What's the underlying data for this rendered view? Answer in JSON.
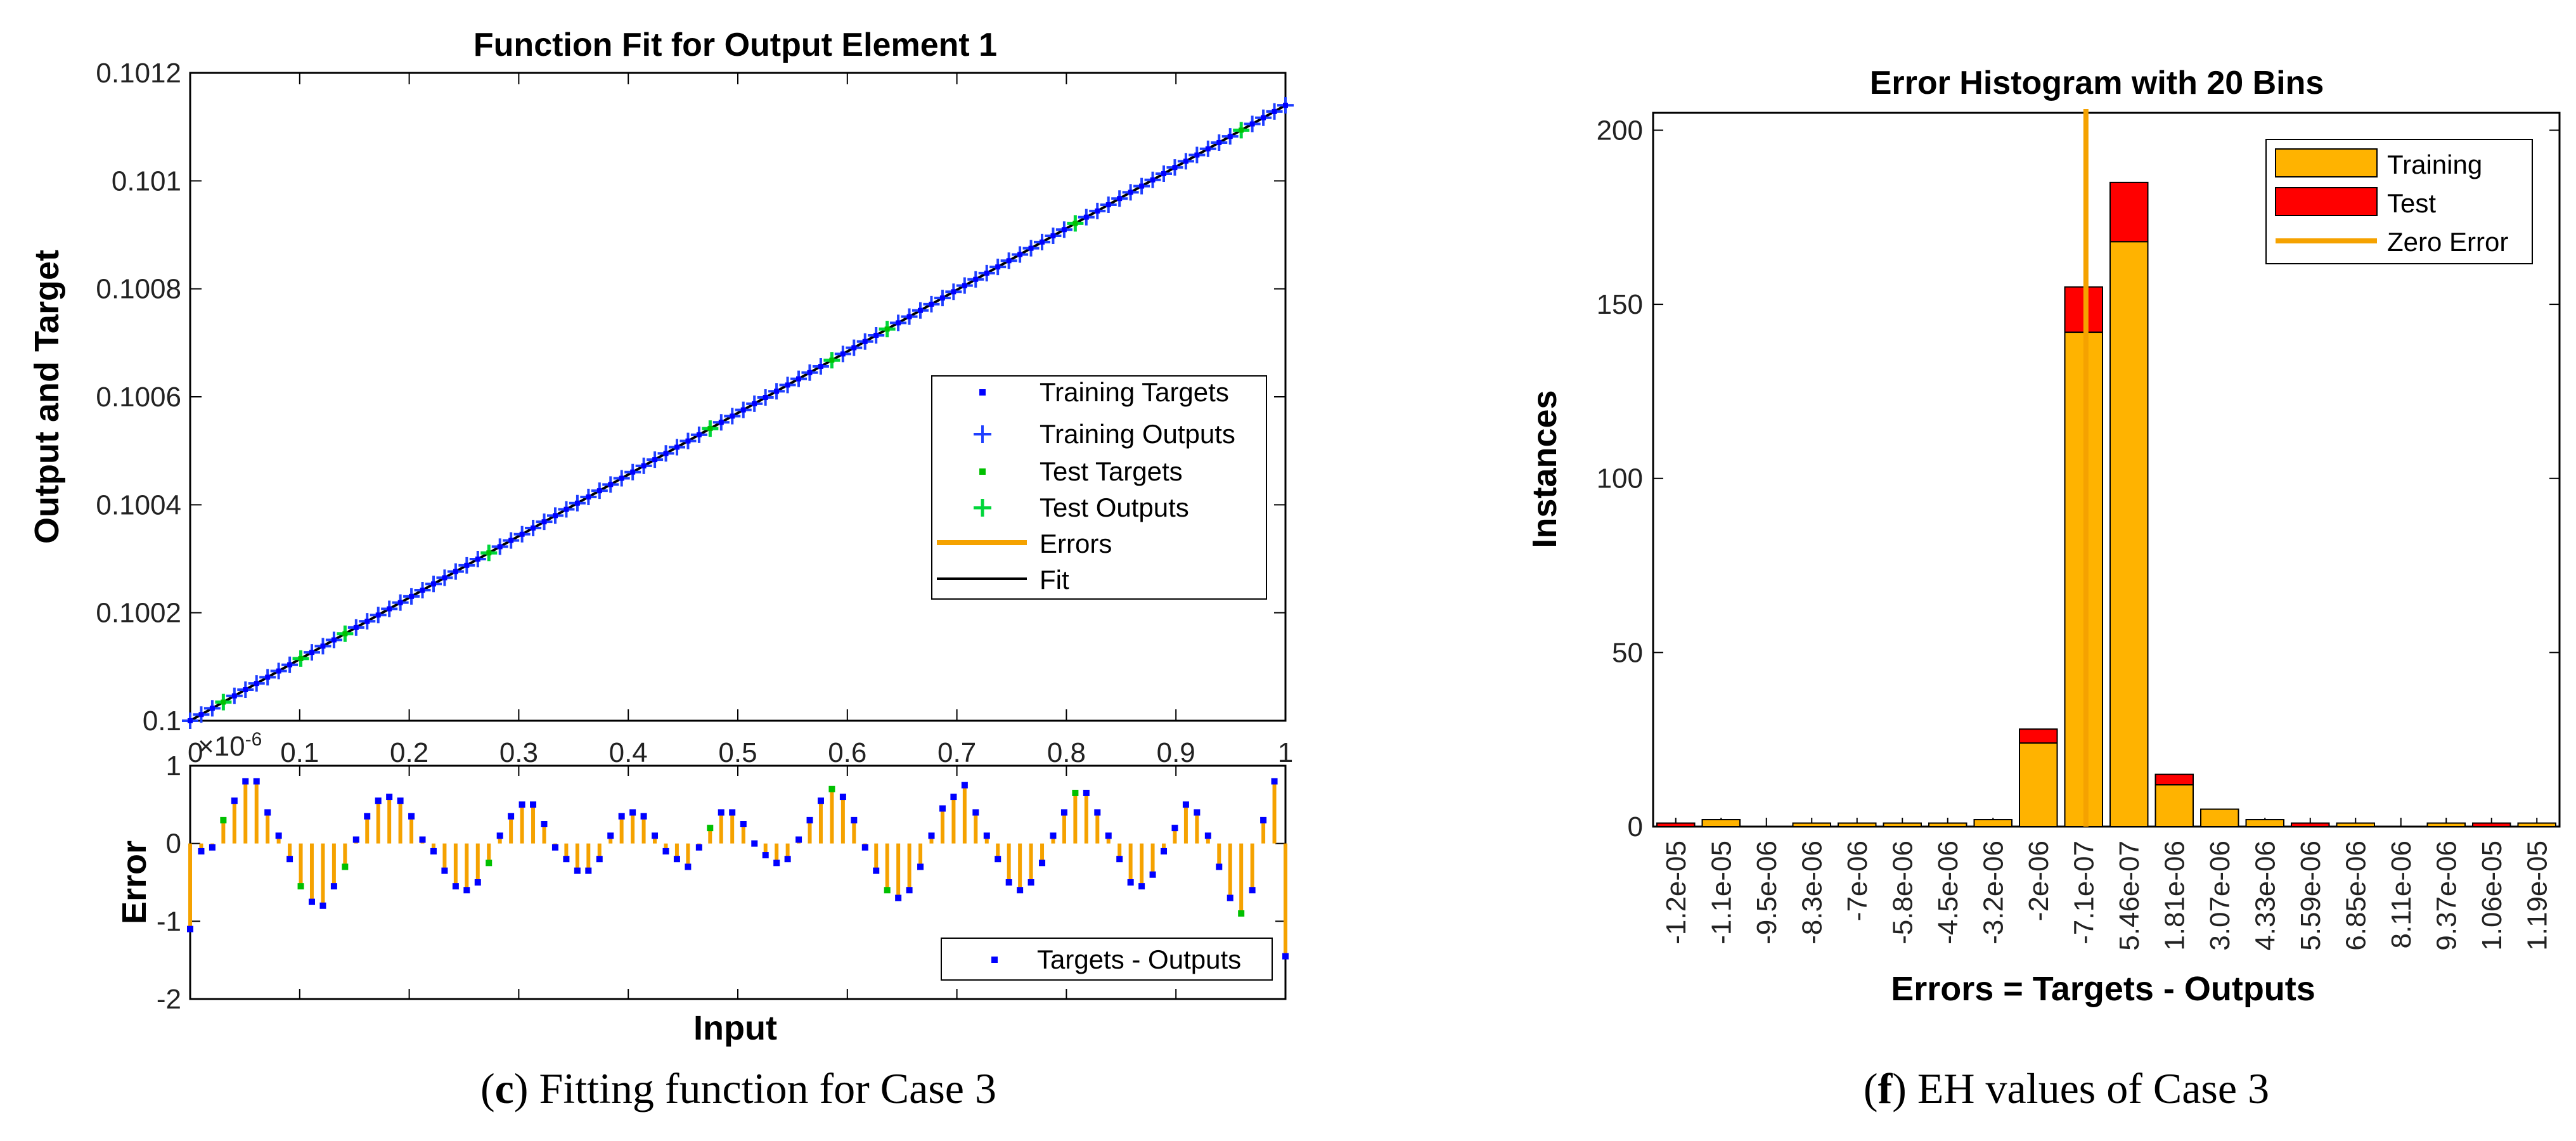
{
  "colors": {
    "training_target": "#0000ff",
    "training_output": "#1f3fff",
    "test_target": "#00c000",
    "test_output": "#00d63a",
    "error": "#f5a200",
    "fit": "#000000",
    "hist_training": "#ffb300",
    "hist_test": "#ff0000",
    "zero_error": "#f5a200"
  },
  "captions": {
    "left_letter": "c",
    "left_text": "Fitting function for Case 3",
    "right_letter": "f",
    "right_text": "EH values of Case 3"
  },
  "chart_data": [
    {
      "type": "line",
      "title": "Function Fit for Output Element 1",
      "xlabel": "",
      "ylabel": "Output and Target",
      "xlim": [
        0,
        1
      ],
      "ylim": [
        0.1,
        0.1012
      ],
      "x_ticks": [
        "0",
        "0.1",
        "0.2",
        "0.3",
        "0.4",
        "0.5",
        "0.6",
        "0.7",
        "0.8",
        "0.9",
        "1"
      ],
      "y_ticks": [
        "0.1",
        "0.1002",
        "0.1004",
        "0.1006",
        "0.1008",
        "0.101",
        "0.1012"
      ],
      "fit": {
        "x": [
          0,
          1
        ],
        "y": [
          0.1,
          0.10114
        ]
      },
      "n_points": 100,
      "test_indices": [
        3,
        10,
        14,
        27,
        47,
        58,
        63,
        80,
        95
      ],
      "legend": {
        "placement": "right",
        "entries": [
          "Training Targets",
          "Training Outputs",
          "Test Targets",
          "Test Outputs",
          "Errors",
          "Fit"
        ]
      }
    },
    {
      "type": "bar",
      "title": "",
      "xlabel": "Input",
      "ylabel": "Error",
      "exponent_label": "×10",
      "exponent_power": "-6",
      "xlim": [
        0,
        1
      ],
      "ylim": [
        -2,
        1
      ],
      "y_ticks": [
        "1",
        "0",
        "-1",
        "-2"
      ],
      "errors_x": [
        0.0,
        0.0101,
        0.0202,
        0.0303,
        0.0404,
        0.0505,
        0.0606,
        0.0707,
        0.0808,
        0.0909,
        0.101,
        0.1111,
        0.1212,
        0.1313,
        0.1414,
        0.1515,
        0.1616,
        0.1717,
        0.1818,
        0.1919,
        0.202,
        0.2121,
        0.2222,
        0.2323,
        0.2424,
        0.2525,
        0.2626,
        0.2727,
        0.2828,
        0.2929,
        0.303,
        0.3131,
        0.3232,
        0.3333,
        0.3434,
        0.3535,
        0.3636,
        0.3737,
        0.3838,
        0.3939,
        0.404,
        0.4141,
        0.4242,
        0.4343,
        0.4444,
        0.4545,
        0.4646,
        0.4747,
        0.4848,
        0.4949,
        0.5051,
        0.5152,
        0.5253,
        0.5354,
        0.5455,
        0.5556,
        0.5657,
        0.5758,
        0.5859,
        0.596,
        0.6061,
        0.6162,
        0.6263,
        0.6364,
        0.6465,
        0.6566,
        0.6667,
        0.6768,
        0.6869,
        0.697,
        0.7071,
        0.7172,
        0.7273,
        0.7374,
        0.7475,
        0.7576,
        0.7677,
        0.7778,
        0.7879,
        0.798,
        0.8081,
        0.8182,
        0.8283,
        0.8384,
        0.8485,
        0.8586,
        0.8687,
        0.8788,
        0.8889,
        0.899,
        0.9091,
        0.9192,
        0.9293,
        0.9394,
        0.9495,
        0.9596,
        0.9697,
        0.9798,
        0.9899,
        1.0
      ],
      "errors_y": [
        -1.1,
        -0.1,
        -0.05,
        0.3,
        0.55,
        0.8,
        0.8,
        0.4,
        0.1,
        -0.2,
        -0.55,
        -0.75,
        -0.8,
        -0.55,
        -0.3,
        0.05,
        0.35,
        0.55,
        0.6,
        0.55,
        0.35,
        0.05,
        -0.1,
        -0.35,
        -0.55,
        -0.6,
        -0.5,
        -0.25,
        0.1,
        0.35,
        0.5,
        0.5,
        0.25,
        -0.05,
        -0.2,
        -0.35,
        -0.35,
        -0.2,
        0.1,
        0.35,
        0.4,
        0.35,
        0.1,
        -0.1,
        -0.2,
        -0.3,
        -0.05,
        0.2,
        0.4,
        0.4,
        0.25,
        0.0,
        -0.15,
        -0.25,
        -0.2,
        0.05,
        0.3,
        0.55,
        0.7,
        0.6,
        0.3,
        -0.05,
        -0.35,
        -0.6,
        -0.7,
        -0.6,
        -0.3,
        0.1,
        0.45,
        0.6,
        0.75,
        0.4,
        0.1,
        -0.2,
        -0.5,
        -0.6,
        -0.5,
        -0.25,
        0.1,
        0.4,
        0.65,
        0.65,
        0.4,
        0.1,
        -0.2,
        -0.5,
        -0.55,
        -0.4,
        -0.1,
        0.2,
        0.5,
        0.4,
        0.1,
        -0.3,
        -0.7,
        -0.9,
        -0.6,
        0.3,
        0.8,
        -1.45
      ],
      "legend": {
        "placement": "bottom-right",
        "entries": [
          "Targets - Outputs"
        ]
      }
    },
    {
      "type": "bar",
      "title": "Error Histogram with 20 Bins",
      "xlabel": "Errors = Targets - Outputs",
      "ylabel": "Instances",
      "ylim": [
        0,
        205
      ],
      "y_ticks": [
        "0",
        "50",
        "100",
        "150",
        "200"
      ],
      "categories": [
        "-1.2e-05",
        "-1.1e-05",
        "-9.5e-06",
        "-8.3e-06",
        "-7e-06",
        "-5.8e-06",
        "-4.5e-06",
        "-3.2e-06",
        "-2e-06",
        "-7.1e-07",
        "5.46e-07",
        "1.81e-06",
        "3.07e-06",
        "4.33e-06",
        "5.59e-06",
        "6.85e-06",
        "8.11e-06",
        "9.37e-06",
        "1.06e-05",
        "1.19e-05"
      ],
      "series": [
        {
          "name": "Training",
          "values": [
            0,
            2,
            0,
            1,
            1,
            1,
            1,
            2,
            24,
            142,
            168,
            12,
            5,
            2,
            0,
            1,
            0,
            1,
            0,
            1
          ]
        },
        {
          "name": "Test",
          "values": [
            1,
            0,
            0,
            0,
            0,
            0,
            0,
            0,
            4,
            13,
            17,
            3,
            0,
            0,
            1,
            0,
            0,
            0,
            1,
            0
          ]
        }
      ],
      "zero_error_at": 9.55,
      "legend": {
        "placement": "top-right",
        "entries": [
          "Training",
          "Test",
          "Zero Error"
        ]
      }
    }
  ]
}
